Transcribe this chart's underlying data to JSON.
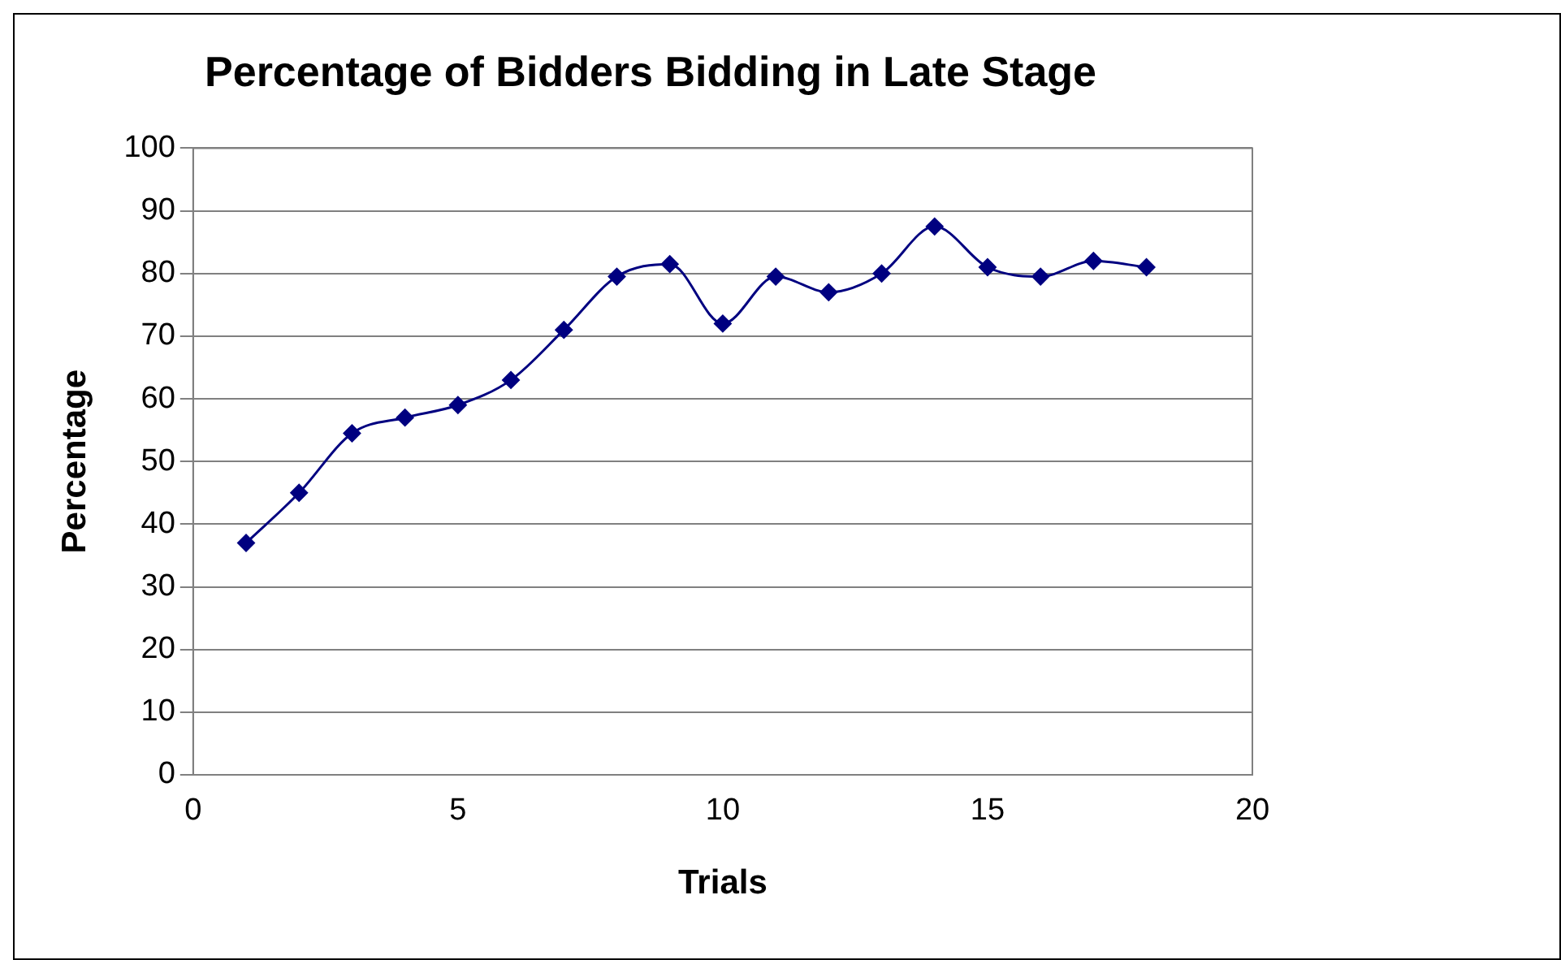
{
  "chart_data": {
    "type": "line",
    "title": "Percentage of Bidders Bidding in Late Stage",
    "xlabel": "Trials",
    "ylabel": "Percentage",
    "x": [
      1,
      2,
      3,
      4,
      5,
      6,
      7,
      8,
      9,
      10,
      11,
      12,
      13,
      14,
      15,
      16,
      17,
      18
    ],
    "series": [
      {
        "color": "#000080",
        "values": [
          37,
          45,
          54.5,
          57,
          59,
          63,
          71,
          79.5,
          81.5,
          72,
          79.5,
          77,
          80,
          87.5,
          81,
          79.5,
          82,
          81
        ]
      }
    ],
    "xlim": [
      0,
      20
    ],
    "xticks": [
      0,
      5,
      10,
      15,
      20
    ],
    "ylim": [
      0,
      100
    ],
    "yticks": [
      0,
      10,
      20,
      30,
      40,
      50,
      60,
      70,
      80,
      90,
      100
    ],
    "grid": "y",
    "marker": "diamond",
    "line_style": "solid"
  }
}
